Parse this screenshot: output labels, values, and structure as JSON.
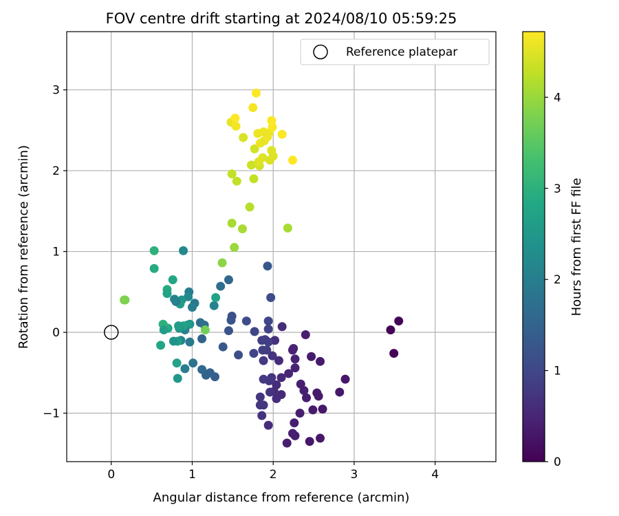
{
  "chart_data": {
    "type": "scatter",
    "title": "FOV centre drift starting at 2024/08/10 05:59:25",
    "xlabel": "Angular distance from reference (arcmin)",
    "ylabel": "Rotation from reference (arcmin)",
    "xlim": [
      -0.55,
      4.75
    ],
    "ylim": [
      -1.6,
      3.72
    ],
    "xticks": [
      0,
      1,
      2,
      3,
      4
    ],
    "xtick_labels": [
      "0",
      "1",
      "2",
      "3",
      "4"
    ],
    "yticks": [
      -1,
      0,
      1,
      2,
      3
    ],
    "ytick_labels": [
      "−1",
      "0",
      "1",
      "2",
      "3"
    ],
    "grid": true,
    "legend": {
      "placement": "top-right",
      "entries": [
        "Reference platepar"
      ]
    },
    "reference_point": {
      "name": "Reference platepar",
      "x": 0,
      "y": 0
    },
    "colorbar": {
      "label": "Hours from first FF file",
      "range": [
        0,
        4.72
      ],
      "ticks": [
        0,
        1,
        2,
        3,
        4
      ],
      "tick_labels": [
        "0",
        "1",
        "2",
        "3",
        "4"
      ],
      "colormap": "viridis"
    },
    "points": [
      {
        "x": 3.55,
        "y": 0.14,
        "h": 0.05
      },
      {
        "x": 3.45,
        "y": 0.03,
        "h": 0.05
      },
      {
        "x": 3.49,
        "y": -0.26,
        "h": 0.05
      },
      {
        "x": 2.89,
        "y": -0.58,
        "h": 0.3
      },
      {
        "x": 2.82,
        "y": -0.74,
        "h": 0.3
      },
      {
        "x": 2.58,
        "y": -0.36,
        "h": 0.35
      },
      {
        "x": 2.61,
        "y": -0.95,
        "h": 0.3
      },
      {
        "x": 2.56,
        "y": -0.79,
        "h": 0.35
      },
      {
        "x": 2.54,
        "y": -0.75,
        "h": 0.35
      },
      {
        "x": 2.49,
        "y": -0.96,
        "h": 0.35
      },
      {
        "x": 2.47,
        "y": -0.3,
        "h": 0.35
      },
      {
        "x": 2.45,
        "y": -1.35,
        "h": 0.3
      },
      {
        "x": 2.58,
        "y": -1.31,
        "h": 0.3
      },
      {
        "x": 2.4,
        "y": -0.03,
        "h": 0.4
      },
      {
        "x": 2.41,
        "y": -0.81,
        "h": 0.4
      },
      {
        "x": 2.38,
        "y": -0.72,
        "h": 0.4
      },
      {
        "x": 2.34,
        "y": -0.64,
        "h": 0.4
      },
      {
        "x": 2.33,
        "y": -1.0,
        "h": 0.4
      },
      {
        "x": 2.27,
        "y": -0.33,
        "h": 0.45
      },
      {
        "x": 2.27,
        "y": -0.44,
        "h": 0.45
      },
      {
        "x": 2.26,
        "y": -1.12,
        "h": 0.4
      },
      {
        "x": 2.24,
        "y": -0.22,
        "h": 0.45
      },
      {
        "x": 2.25,
        "y": -0.2,
        "h": 0.45
      },
      {
        "x": 2.27,
        "y": -1.28,
        "h": 0.4
      },
      {
        "x": 2.24,
        "y": -1.25,
        "h": 0.4
      },
      {
        "x": 2.17,
        "y": -1.37,
        "h": 0.4
      },
      {
        "x": 2.19,
        "y": -0.51,
        "h": 0.5
      },
      {
        "x": 2.11,
        "y": 0.07,
        "h": 0.6
      },
      {
        "x": 2.1,
        "y": -0.56,
        "h": 0.55
      },
      {
        "x": 2.1,
        "y": -0.77,
        "h": 0.55
      },
      {
        "x": 2.07,
        "y": -0.35,
        "h": 0.6
      },
      {
        "x": 2.04,
        "y": -0.65,
        "h": 0.6
      },
      {
        "x": 2.04,
        "y": -0.82,
        "h": 0.6
      },
      {
        "x": 2.02,
        "y": -0.1,
        "h": 0.65
      },
      {
        "x": 2.01,
        "y": -0.73,
        "h": 0.6
      },
      {
        "x": 1.99,
        "y": -0.29,
        "h": 0.7
      },
      {
        "x": 1.98,
        "y": -0.56,
        "h": 0.7
      },
      {
        "x": 1.97,
        "y": 0.43,
        "h": 1.1
      },
      {
        "x": 1.96,
        "y": -0.74,
        "h": 0.7
      },
      {
        "x": 1.95,
        "y": -0.6,
        "h": 0.75
      },
      {
        "x": 1.94,
        "y": 0.14,
        "h": 1.0
      },
      {
        "x": 1.94,
        "y": -0.12,
        "h": 0.9
      },
      {
        "x": 1.94,
        "y": -1.15,
        "h": 0.6
      },
      {
        "x": 1.93,
        "y": 0.82,
        "h": 1.3
      },
      {
        "x": 1.92,
        "y": -0.22,
        "h": 0.85
      },
      {
        "x": 1.9,
        "y": -0.09,
        "h": 0.85
      },
      {
        "x": 1.88,
        "y": -0.35,
        "h": 0.8
      },
      {
        "x": 1.88,
        "y": -0.58,
        "h": 0.8
      },
      {
        "x": 1.87,
        "y": -0.22,
        "h": 0.85
      },
      {
        "x": 1.86,
        "y": -0.1,
        "h": 0.85
      },
      {
        "x": 1.84,
        "y": -0.8,
        "h": 0.75
      },
      {
        "x": 1.84,
        "y": -0.9,
        "h": 0.75
      },
      {
        "x": 1.88,
        "y": -0.9,
        "h": 0.75
      },
      {
        "x": 1.86,
        "y": -1.03,
        "h": 0.7
      },
      {
        "x": 1.94,
        "y": 0.04,
        "h": 0.95
      },
      {
        "x": 1.77,
        "y": 0.01,
        "h": 1.0
      },
      {
        "x": 1.76,
        "y": -0.26,
        "h": 0.95
      },
      {
        "x": 1.67,
        "y": 0.14,
        "h": 1.1
      },
      {
        "x": 1.57,
        "y": -0.28,
        "h": 1.1
      },
      {
        "x": 1.49,
        "y": 0.2,
        "h": 1.15
      },
      {
        "x": 1.48,
        "y": 0.15,
        "h": 1.2
      },
      {
        "x": 1.45,
        "y": 0.02,
        "h": 1.2
      },
      {
        "x": 1.45,
        "y": 0.65,
        "h": 1.6
      },
      {
        "x": 1.38,
        "y": -0.18,
        "h": 1.3
      },
      {
        "x": 1.35,
        "y": 0.57,
        "h": 1.7
      },
      {
        "x": 1.28,
        "y": -0.55,
        "h": 1.4
      },
      {
        "x": 1.27,
        "y": 0.33,
        "h": 2.1
      },
      {
        "x": 1.29,
        "y": 0.43,
        "h": 2.7
      },
      {
        "x": 1.22,
        "y": -0.5,
        "h": 1.5
      },
      {
        "x": 1.17,
        "y": -0.53,
        "h": 1.5
      },
      {
        "x": 1.15,
        "y": 0.09,
        "h": 1.7
      },
      {
        "x": 1.12,
        "y": -0.08,
        "h": 1.5
      },
      {
        "x": 1.12,
        "y": -0.46,
        "h": 1.6
      },
      {
        "x": 1.1,
        "y": 0.12,
        "h": 1.7
      },
      {
        "x": 1.16,
        "y": 0.03,
        "h": 3.7
      },
      {
        "x": 1.03,
        "y": 0.36,
        "h": 1.9
      },
      {
        "x": 1.01,
        "y": -0.38,
        "h": 1.8
      },
      {
        "x": 1.0,
        "y": 0.31,
        "h": 2.0
      },
      {
        "x": 0.97,
        "y": 0.1,
        "h": 2.4
      },
      {
        "x": 0.97,
        "y": -0.12,
        "h": 1.9
      },
      {
        "x": 0.96,
        "y": 0.5,
        "h": 2.0
      },
      {
        "x": 0.95,
        "y": 0.44,
        "h": 2.2
      },
      {
        "x": 0.94,
        "y": 0.09,
        "h": 2.6
      },
      {
        "x": 0.91,
        "y": 0.03,
        "h": 2.1
      },
      {
        "x": 0.91,
        "y": -0.45,
        "h": 2.0
      },
      {
        "x": 0.89,
        "y": 0.08,
        "h": 2.7
      },
      {
        "x": 0.89,
        "y": 1.01,
        "h": 2.2
      },
      {
        "x": 0.87,
        "y": 0.4,
        "h": 2.4
      },
      {
        "x": 0.86,
        "y": -0.1,
        "h": 2.1
      },
      {
        "x": 0.85,
        "y": 0.35,
        "h": 2.6
      },
      {
        "x": 0.84,
        "y": 0.05,
        "h": 2.4
      },
      {
        "x": 0.83,
        "y": 0.08,
        "h": 2.6
      },
      {
        "x": 0.82,
        "y": -0.57,
        "h": 2.5
      },
      {
        "x": 0.82,
        "y": -0.11,
        "h": 2.6
      },
      {
        "x": 0.81,
        "y": -0.38,
        "h": 2.7
      },
      {
        "x": 0.8,
        "y": 0.38,
        "h": 2.0
      },
      {
        "x": 0.78,
        "y": 0.41,
        "h": 2.1
      },
      {
        "x": 0.77,
        "y": -0.11,
        "h": 2.4
      },
      {
        "x": 0.76,
        "y": 0.65,
        "h": 2.8
      },
      {
        "x": 0.7,
        "y": 0.05,
        "h": 2.8
      },
      {
        "x": 0.69,
        "y": 0.53,
        "h": 2.9
      },
      {
        "x": 0.69,
        "y": 0.48,
        "h": 2.7
      },
      {
        "x": 0.66,
        "y": 0.07,
        "h": 3.0
      },
      {
        "x": 0.64,
        "y": 0.1,
        "h": 3.0
      },
      {
        "x": 0.65,
        "y": 0.03,
        "h": 2.6
      },
      {
        "x": 0.61,
        "y": -0.16,
        "h": 2.8
      },
      {
        "x": 0.53,
        "y": 1.01,
        "h": 3.0
      },
      {
        "x": 0.53,
        "y": 0.79,
        "h": 2.9
      },
      {
        "x": 0.17,
        "y": 0.4,
        "h": 3.7
      },
      {
        "x": 0.16,
        "y": 0.4,
        "h": 3.8
      },
      {
        "x": 1.37,
        "y": 0.86,
        "h": 3.9
      },
      {
        "x": 1.52,
        "y": 1.05,
        "h": 4.0
      },
      {
        "x": 1.62,
        "y": 1.28,
        "h": 4.1
      },
      {
        "x": 1.49,
        "y": 1.35,
        "h": 4.1
      },
      {
        "x": 1.71,
        "y": 1.55,
        "h": 4.2
      },
      {
        "x": 2.18,
        "y": 1.29,
        "h": 4.1
      },
      {
        "x": 1.55,
        "y": 1.87,
        "h": 4.3
      },
      {
        "x": 1.76,
        "y": 1.9,
        "h": 4.3
      },
      {
        "x": 1.49,
        "y": 1.96,
        "h": 4.3
      },
      {
        "x": 1.73,
        "y": 2.07,
        "h": 4.35
      },
      {
        "x": 1.83,
        "y": 2.06,
        "h": 4.4
      },
      {
        "x": 1.82,
        "y": 2.11,
        "h": 4.5
      },
      {
        "x": 1.87,
        "y": 2.16,
        "h": 4.5
      },
      {
        "x": 1.96,
        "y": 2.13,
        "h": 4.45
      },
      {
        "x": 2.0,
        "y": 2.18,
        "h": 4.5
      },
      {
        "x": 1.98,
        "y": 2.25,
        "h": 4.5
      },
      {
        "x": 2.24,
        "y": 2.13,
        "h": 4.72
      },
      {
        "x": 1.77,
        "y": 2.27,
        "h": 4.4
      },
      {
        "x": 1.84,
        "y": 2.34,
        "h": 4.6
      },
      {
        "x": 1.89,
        "y": 2.37,
        "h": 4.55
      },
      {
        "x": 1.93,
        "y": 2.42,
        "h": 4.6
      },
      {
        "x": 1.63,
        "y": 2.41,
        "h": 4.45
      },
      {
        "x": 1.81,
        "y": 2.46,
        "h": 4.6
      },
      {
        "x": 1.88,
        "y": 2.48,
        "h": 4.6
      },
      {
        "x": 1.95,
        "y": 2.47,
        "h": 4.6
      },
      {
        "x": 2.11,
        "y": 2.45,
        "h": 4.7
      },
      {
        "x": 1.99,
        "y": 2.54,
        "h": 4.7
      },
      {
        "x": 1.48,
        "y": 2.6,
        "h": 4.55
      },
      {
        "x": 1.54,
        "y": 2.55,
        "h": 4.65
      },
      {
        "x": 1.53,
        "y": 2.65,
        "h": 4.72
      },
      {
        "x": 1.98,
        "y": 2.62,
        "h": 4.7
      },
      {
        "x": 1.75,
        "y": 2.78,
        "h": 4.65
      },
      {
        "x": 1.79,
        "y": 2.96,
        "h": 4.72
      }
    ]
  }
}
